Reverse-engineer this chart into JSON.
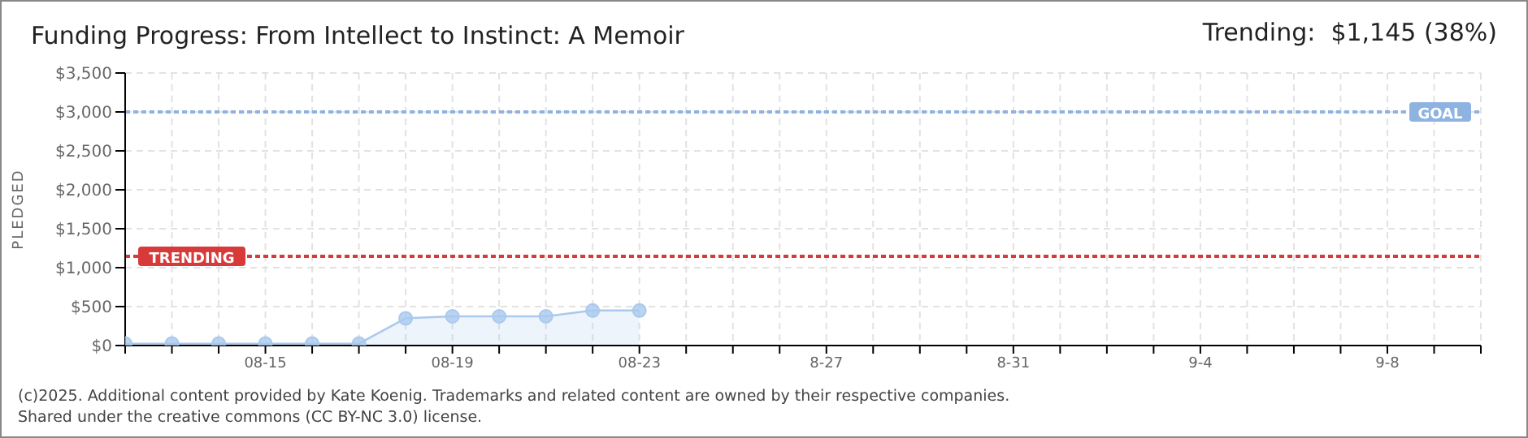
{
  "chart_data": {
    "type": "area",
    "title": "Funding Progress: From Intellect to Instinct: A Memoir",
    "subtitle": "Trending:  $1,145 (38%)",
    "ylabel": "PLEDGED",
    "x": [
      "--08-12",
      "--08-13",
      "--08-14",
      "--08-15",
      "--08-16",
      "--08-17",
      "--08-18",
      "--08-19",
      "--08-20",
      "--08-21",
      "--08-22",
      "--08-23"
    ],
    "series": [
      {
        "color": "#a9c9ee",
        "values": [
          25,
          25,
          25,
          25,
          25,
          25,
          350,
          375,
          375,
          375,
          450,
          450
        ]
      }
    ],
    "xlim": [
      "--08-12",
      "--09-10"
    ],
    "xticks": [
      {
        "value": "--08-12",
        "label": null
      },
      {
        "value": "--08-13",
        "label": null
      },
      {
        "value": "--08-14",
        "label": null
      },
      {
        "value": "--08-15",
        "label": "08-15"
      },
      {
        "value": "--08-16",
        "label": null
      },
      {
        "value": "--08-17",
        "label": null
      },
      {
        "value": "--08-18",
        "label": null
      },
      {
        "value": "--08-19",
        "label": "08-19"
      },
      {
        "value": "--08-20",
        "label": null
      },
      {
        "value": "--08-21",
        "label": null
      },
      {
        "value": "--08-22",
        "label": null
      },
      {
        "value": "--08-23",
        "label": "08-23"
      },
      {
        "value": "--08-24",
        "label": null
      },
      {
        "value": "--08-25",
        "label": null
      },
      {
        "value": "--08-26",
        "label": null
      },
      {
        "value": "--08-27",
        "label": "8-27"
      },
      {
        "value": "--08-28",
        "label": null
      },
      {
        "value": "--08-29",
        "label": null
      },
      {
        "value": "--08-30",
        "label": null
      },
      {
        "value": "--08-31",
        "label": "8-31"
      },
      {
        "value": "--09-01",
        "label": null
      },
      {
        "value": "--09-02",
        "label": null
      },
      {
        "value": "--09-03",
        "label": null
      },
      {
        "value": "--09-04",
        "label": "9-4"
      },
      {
        "value": "--09-05",
        "label": null
      },
      {
        "value": "--09-06",
        "label": null
      },
      {
        "value": "--09-07",
        "label": null
      },
      {
        "value": "--09-08",
        "label": "9-8"
      },
      {
        "value": "--09-09",
        "label": null
      },
      {
        "value": "--09-10",
        "label": null
      }
    ],
    "ylim": [
      0,
      3500
    ],
    "yticks": [
      {
        "value": 0,
        "label": "$0"
      },
      {
        "value": 500,
        "label": "$500"
      },
      {
        "value": 1000,
        "label": "$1,000"
      },
      {
        "value": 1500,
        "label": "$1,500"
      },
      {
        "value": 2000,
        "label": "$2,000"
      },
      {
        "value": 2500,
        "label": "$2,500"
      },
      {
        "value": 3000,
        "label": "$3,000"
      },
      {
        "value": 3500,
        "label": "$3,500"
      }
    ],
    "ref_lines": [
      {
        "axis": "y",
        "value": 3000,
        "label": "GOAL",
        "color": "#8fb3e0",
        "line_style": "dotted"
      },
      {
        "axis": "y",
        "value": 1145,
        "label": "TRENDING",
        "color": "#d83a3a",
        "line_style": "dotted"
      }
    ],
    "grid": true,
    "marker": "circle",
    "annotations": [
      "(c)2025. Additional content provided by Kate Koenig. Trademarks and related content are owned by their respective companies.",
      "Shared under the creative commons (CC BY-NC 3.0) license."
    ]
  }
}
